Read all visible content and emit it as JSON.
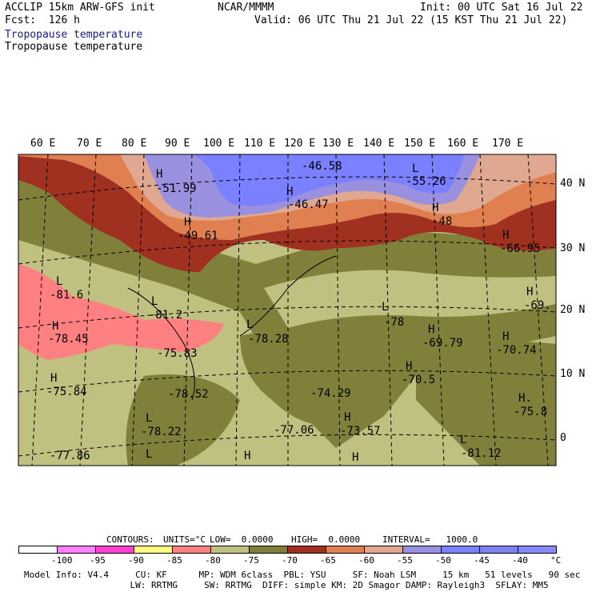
{
  "header": {
    "model_line": "ACCLIP 15km ARW-GFS init",
    "forecast_line": "Fcst:  126 h",
    "title1": "Tropopause temperature",
    "title2": "Tropopause temperature",
    "center": "NCAR/MMMM",
    "init": "Init: 00 UTC Sat 16 Jul 22",
    "valid": "Valid: 06 UTC Thu 21 Jul 22 (15 KST Thu 21 Jul 22)"
  },
  "longitude_labels": [
    "60 E",
    "70 E",
    "80 E",
    "90 E",
    "100 E",
    "110 E",
    "120 E",
    "130 E",
    "140 E",
    "150 E",
    "160 E",
    "170 E"
  ],
  "latitude_labels": [
    "40 N",
    "30 N",
    "20 N",
    "10 N",
    "0"
  ],
  "map_labels": [
    {
      "text": "H"
    },
    {
      "text": "-51.99"
    },
    {
      "text": "H"
    },
    {
      "text": "-49.61"
    },
    {
      "text": "-46.58"
    },
    {
      "text": "H"
    },
    {
      "text": "-46.47"
    },
    {
      "text": "L"
    },
    {
      "text": "-55.26"
    },
    {
      "text": "H"
    },
    {
      "text": "-48"
    },
    {
      "text": "H"
    },
    {
      "text": "-66.95"
    },
    {
      "text": "L"
    },
    {
      "text": "-81.6"
    },
    {
      "text": "H"
    },
    {
      "text": "-78.45"
    },
    {
      "text": "L"
    },
    {
      "text": "-81.2"
    },
    {
      "text": "-75.83"
    },
    {
      "text": "L"
    },
    {
      "text": "-78.28"
    },
    {
      "text": "L"
    },
    {
      "text": "-78"
    },
    {
      "text": "H"
    },
    {
      "text": "-69.79"
    },
    {
      "text": "H"
    },
    {
      "text": "-69."
    },
    {
      "text": "H"
    },
    {
      "text": "-70.74"
    },
    {
      "text": "H"
    },
    {
      "text": "-75.84"
    },
    {
      "text": "-78.52"
    },
    {
      "text": "-74.29"
    },
    {
      "text": "H"
    },
    {
      "text": "-70.5"
    },
    {
      "text": "H."
    },
    {
      "text": "-75.8"
    },
    {
      "text": "L"
    },
    {
      "text": "-78.22"
    },
    {
      "text": "-77.06"
    },
    {
      "text": "H"
    },
    {
      "text": "-73.57"
    },
    {
      "text": "L"
    },
    {
      "text": "-81.12"
    },
    {
      "text": "-77.86"
    },
    {
      "text": "L"
    },
    {
      "text": "H"
    },
    {
      "text": "H"
    }
  ],
  "contour_info": {
    "contours": "CONTOURS:",
    "units": "UNITS=°C",
    "low": "LOW=  0.0000",
    "high": "HIGH=  0.0000",
    "interval": "INTERVAL=   1000.0"
  },
  "colorbar": {
    "colors": [
      "#ffffff",
      "#ff80ff",
      "#ff40d0",
      "#ffff80",
      "#ff8080",
      "#c0c080",
      "#80803a",
      "#a03020",
      "#e08050",
      "#e0a890",
      "#9a90e0",
      "#7a80ff",
      "#8080f0",
      "#8888ff"
    ],
    "ticks": [
      "-100",
      "-95",
      "-90",
      "-85",
      "-80",
      "-75",
      "-70",
      "-65",
      "-60",
      "-55",
      "-50",
      "-45",
      "-40"
    ],
    "unit": "°C"
  },
  "footer": {
    "line1": "Model Info: V4.4     CU: KF      MP: WDM 6class  PBL: YSU     SF: Noah LSM     15 km   51 levels   90 sec",
    "line2": "                    LW: RRTMG     SW: RRTMG  DIFF: simple KM: 2D Smagor DAMP: Rayleigh3  SFLAY: MM5"
  }
}
